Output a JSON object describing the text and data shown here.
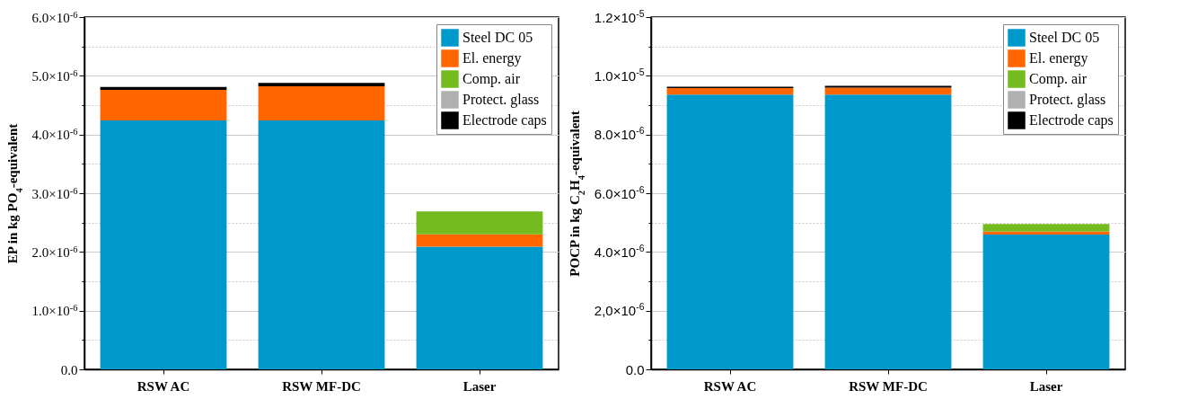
{
  "chart_data": [
    {
      "type": "bar",
      "stacked": true,
      "ylabel": "EP in kg PO$_{4}$-equivalent",
      "categories": [
        "RSW AC",
        "RSW MF-DC",
        "Laser"
      ],
      "series": [
        {
          "name": "Steel DC 05",
          "color": "#0099cc",
          "values": [
            4.24e-06,
            4.24e-06,
            2.09e-06
          ]
        },
        {
          "name": "El. energy",
          "color": "#ff6600",
          "values": [
            5.2e-07,
            5.8e-07,
            2.1e-07
          ]
        },
        {
          "name": "Comp. air",
          "color": "#73bb1f",
          "values": [
            null,
            null,
            3.9e-07
          ]
        },
        {
          "name": "Protect. glass",
          "color": "#b0b0b0",
          "values": [
            null,
            null,
            null
          ]
        },
        {
          "name": "Electrode caps",
          "color": "#000000",
          "values": [
            5e-08,
            6e-08,
            null
          ]
        }
      ],
      "ylim": [
        0,
        6e-06
      ],
      "yticks": [
        {
          "value": 0,
          "label": "0.0"
        },
        {
          "value": 5e-07,
          "label": null
        },
        {
          "value": 1e-06,
          "label": "1.0×10$^{-6}$"
        },
        {
          "value": 1.5e-06,
          "label": null
        },
        {
          "value": 2e-06,
          "label": "2.0×10$^{-6}$"
        },
        {
          "value": 2.5e-06,
          "label": null
        },
        {
          "value": 3e-06,
          "label": "3.0×10$^{-6}$"
        },
        {
          "value": 3.5e-06,
          "label": null
        },
        {
          "value": 4e-06,
          "label": "4.0×10$^{-6}$"
        },
        {
          "value": 4.5e-06,
          "label": null
        },
        {
          "value": 5e-06,
          "label": "5.0×10$^{-6}$"
        },
        {
          "value": 5.5e-06,
          "label": null
        },
        {
          "value": 6e-06,
          "label": "6.0×10$^{-6}$"
        }
      ],
      "grid": "y",
      "legend": "top right"
    },
    {
      "type": "bar",
      "stacked": true,
      "ylabel": "POCP in kg C$_{2}$H$_{4}$-equivalent",
      "categories": [
        "RSW AC",
        "RSW MF-DC",
        "Laser"
      ],
      "series": [
        {
          "name": "Steel DC 05",
          "color": "#0099cc",
          "values": [
            9.36e-06,
            9.36e-06,
            4.59e-06
          ]
        },
        {
          "name": "El. energy",
          "color": "#ff6600",
          "values": [
            2.2e-07,
            2.4e-07,
            1.1e-07
          ]
        },
        {
          "name": "Comp. air",
          "color": "#73bb1f",
          "values": [
            null,
            null,
            2.5e-07
          ]
        },
        {
          "name": "Protect. glass",
          "color": "#b0b0b0",
          "values": [
            null,
            null,
            null
          ]
        },
        {
          "name": "Electrode caps",
          "color": "#000000",
          "values": [
            5e-08,
            6e-08,
            null
          ]
        }
      ],
      "ylim": [
        0,
        1.2e-05
      ],
      "yticks": [
        {
          "value": 0,
          "label": "0.0"
        },
        {
          "value": 1e-06,
          "label": null
        },
        {
          "value": 2e-06,
          "label": "2,0×10$^{-6}$"
        },
        {
          "value": 3e-06,
          "label": null
        },
        {
          "value": 4e-06,
          "label": "4.0×10$^{-6}$"
        },
        {
          "value": 5e-06,
          "label": null
        },
        {
          "value": 6e-06,
          "label": "6.0×10$^{-6}$"
        },
        {
          "value": 7e-06,
          "label": null
        },
        {
          "value": 8e-06,
          "label": "8.0×10$^{-6}$"
        },
        {
          "value": 9e-06,
          "label": null
        },
        {
          "value": 1e-05,
          "label": "1.0×10$^{-5}$"
        },
        {
          "value": 1.1e-05,
          "label": null
        },
        {
          "value": 1.2e-05,
          "label": "1.2×10$^{-5}$"
        }
      ],
      "grid": "y",
      "legend": "top right"
    }
  ]
}
